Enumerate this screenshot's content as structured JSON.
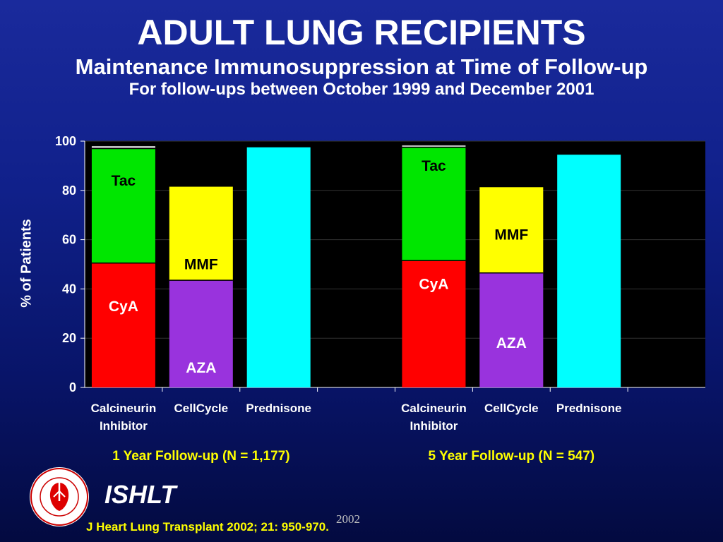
{
  "title": "ADULT LUNG RECIPIENTS",
  "subtitle": "Maintenance Immunosuppression at Time of Follow-up",
  "subtitle2": "For follow-ups between October 1999 and December 2001",
  "org": "ISHLT",
  "citation": "J Heart Lung Transplant 2002; 21: 950-970.",
  "year_stamp": "2002",
  "logo_text": "INTERNATIONAL SOCIETY FOR HEART & LUNG TRANSPLANTATION",
  "colors": {
    "cya": "#ff0000",
    "tac": "#00e600",
    "aza": "#9933dd",
    "mmf": "#ffff00",
    "prednisone": "#00ffff",
    "label_yellow": "#ffff00"
  },
  "chart_data": {
    "type": "bar",
    "stacked": true,
    "ylabel": "% of Patients",
    "ylim": [
      0,
      100
    ],
    "yticks": [
      0,
      20,
      40,
      60,
      80,
      100
    ],
    "grid": true,
    "groups": [
      {
        "label": "1 Year Follow-up  (N = 1,177)",
        "bars": [
          {
            "category": "Calcineurin Inhibitor",
            "segments": [
              {
                "name": "CyA",
                "value": 50.5,
                "color": "#ff0000"
              },
              {
                "name": "Tac",
                "value": 46.5,
                "color": "#00e600"
              },
              {
                "name": "",
                "value": 1.0,
                "color": "#c0c0c0"
              }
            ]
          },
          {
            "category": "CellCycle",
            "segments": [
              {
                "name": "AZA",
                "value": 43.5,
                "color": "#9933dd"
              },
              {
                "name": "MMF",
                "value": 38.0,
                "color": "#ffff00"
              }
            ]
          },
          {
            "category": "Prednisone",
            "segments": [
              {
                "name": "",
                "value": 97.5,
                "color": "#00ffff"
              }
            ]
          }
        ]
      },
      {
        "label": "5 Year Follow-up  (N = 547)",
        "bars": [
          {
            "category": "Calcineurin Inhibitor",
            "segments": [
              {
                "name": "CyA",
                "value": 51.5,
                "color": "#ff0000"
              },
              {
                "name": "Tac",
                "value": 46.0,
                "color": "#00e600"
              },
              {
                "name": "",
                "value": 0.8,
                "color": "#c0c0c0"
              }
            ]
          },
          {
            "category": "CellCycle",
            "segments": [
              {
                "name": "AZA",
                "value": 46.5,
                "color": "#9933dd"
              },
              {
                "name": "MMF",
                "value": 34.8,
                "color": "#ffff00"
              }
            ]
          },
          {
            "category": "Prednisone",
            "segments": [
              {
                "name": "",
                "value": 94.5,
                "color": "#00ffff"
              }
            ]
          }
        ]
      }
    ],
    "segment_labels": [
      {
        "text": "Tac",
        "group": 0,
        "bar": 0,
        "at": 84,
        "color": "#000000"
      },
      {
        "text": "CyA",
        "group": 0,
        "bar": 0,
        "at": 33,
        "color": "#ffffff"
      },
      {
        "text": "MMF",
        "group": 0,
        "bar": 1,
        "at": 50,
        "color": "#000000"
      },
      {
        "text": "AZA",
        "group": 0,
        "bar": 1,
        "at": 8,
        "color": "#ffffff"
      },
      {
        "text": "Tac",
        "group": 1,
        "bar": 0,
        "at": 90,
        "color": "#000000"
      },
      {
        "text": "CyA",
        "group": 1,
        "bar": 0,
        "at": 42,
        "color": "#ffffff"
      },
      {
        "text": "MMF",
        "group": 1,
        "bar": 1,
        "at": 62,
        "color": "#000000"
      },
      {
        "text": "AZA",
        "group": 1,
        "bar": 1,
        "at": 18,
        "color": "#ffffff"
      }
    ],
    "category_labels": [
      [
        "Calcineurin",
        "Inhibitor"
      ],
      [
        "CellCycle"
      ],
      [
        "Prednisone"
      ],
      [
        "Calcineurin",
        "Inhibitor"
      ],
      [
        "CellCycle"
      ],
      [
        "Prednisone"
      ]
    ]
  }
}
